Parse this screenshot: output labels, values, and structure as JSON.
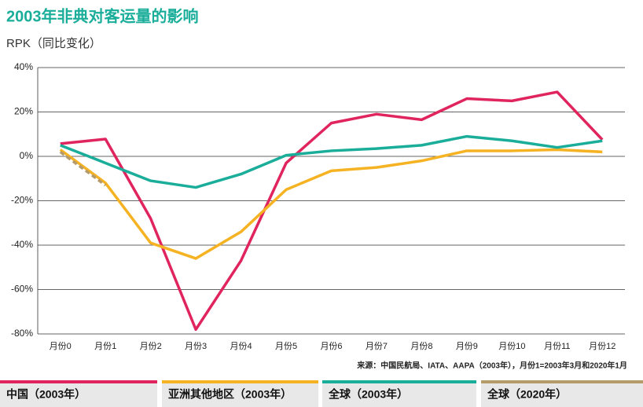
{
  "chart_data": {
    "type": "line",
    "title": "2003年非典对客运量的影响",
    "subtitle": "RPK（同比变化）",
    "source": "来源：中国民航局、IATA、AAPA（2003年），月份1=2003年3月和2020年1月",
    "categories": [
      "月份0",
      "月份1",
      "月份2",
      "月份3",
      "月份4",
      "月份5",
      "月份6",
      "月份7",
      "月份8",
      "月份9",
      "月份10",
      "月份11",
      "月份12"
    ],
    "ylim": [
      -80,
      40
    ],
    "yticks": [
      {
        "value": -80,
        "label": "-80%"
      },
      {
        "value": -60,
        "label": "-60%"
      },
      {
        "value": -40,
        "label": "-40%"
      },
      {
        "value": -20,
        "label": "-20%"
      },
      {
        "value": 0,
        "label": "0%"
      },
      {
        "value": 20,
        "label": "20%"
      },
      {
        "value": 40,
        "label": "40%"
      }
    ],
    "grid": true,
    "series": [
      {
        "name": "中国（2003年）",
        "color": "#e0245e",
        "values": [
          5.7,
          7.8,
          -28,
          -78,
          -47,
          -3,
          15,
          19,
          16.5,
          26,
          25,
          29,
          7.5
        ]
      },
      {
        "name": "亚洲其他地区（2003年）",
        "color": "#f5b324",
        "values": [
          3,
          -12,
          -39,
          -46,
          -34,
          -15,
          -6.5,
          -5,
          -2,
          2.5,
          2.5,
          3,
          2
        ]
      },
      {
        "name": "全球（2003年）",
        "color": "#1aae9a",
        "values": [
          5,
          -3,
          -11,
          -14,
          -8,
          0.5,
          2.5,
          3.5,
          5,
          9,
          7,
          4,
          7
        ]
      },
      {
        "name": "全球（2020年）",
        "color": "#b59a6a",
        "dashed": true,
        "values": [
          2,
          -13,
          null,
          null,
          null,
          null,
          null,
          null,
          null,
          null,
          null,
          null,
          null
        ]
      }
    ]
  }
}
